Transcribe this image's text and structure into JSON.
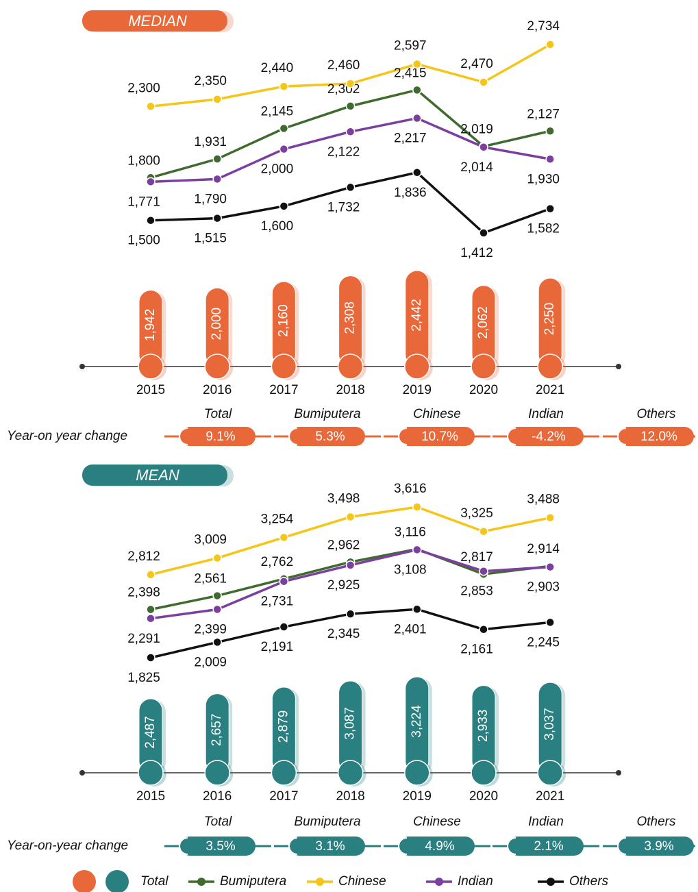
{
  "chart_data": [
    {
      "type": "combo",
      "title": "MEDIAN",
      "categories": [
        "2015",
        "2016",
        "2017",
        "2018",
        "2019",
        "2020",
        "2021"
      ],
      "series": [
        {
          "name": "Total",
          "type": "bar",
          "color": "#e8683a",
          "values": [
            1942,
            2000,
            2160,
            2308,
            2442,
            2062,
            2250
          ],
          "value_labels": [
            "1,942",
            "2,000",
            "2,160",
            "2,308",
            "2,442",
            "2,062",
            "2,250"
          ]
        },
        {
          "name": "Bumiputera",
          "type": "line",
          "color": "#3f6b2e",
          "values": [
            1800,
            1931,
            2145,
            2302,
            2415,
            2019,
            2127
          ],
          "value_labels": [
            "1,800",
            "1,931",
            "2,145",
            "2,302",
            "2,415",
            "2,019",
            "2,127"
          ]
        },
        {
          "name": "Chinese",
          "type": "line",
          "color": "#f5c518",
          "values": [
            2300,
            2350,
            2440,
            2460,
            2597,
            2470,
            2734
          ],
          "value_labels": [
            "2,300",
            "2,350",
            "2,440",
            "2,460",
            "2,597",
            "2,470",
            "2,734"
          ]
        },
        {
          "name": "Indian",
          "type": "line",
          "color": "#7b3fa0",
          "values": [
            1771,
            1790,
            2000,
            2122,
            2217,
            2014,
            1930
          ],
          "value_labels": [
            "1,771",
            "1,790",
            "2,000",
            "2,122",
            "2,217",
            "2,014",
            "1,930"
          ]
        },
        {
          "name": "Others",
          "type": "line",
          "color": "#111111",
          "values": [
            1500,
            1515,
            1600,
            1732,
            1836,
            1412,
            1582
          ],
          "value_labels": [
            "1,500",
            "1,515",
            "1,600",
            "1,732",
            "1,836",
            "1,412",
            "1,582"
          ]
        }
      ],
      "yoy": {
        "label": "Year-on year change",
        "values": [
          9.1,
          5.3,
          10.7,
          -4.2,
          12.0
        ],
        "value_labels": [
          "9.1%",
          "5.3%",
          "10.7%",
          "-4.2%",
          "12.0%"
        ]
      }
    },
    {
      "type": "combo",
      "title": "MEAN",
      "categories": [
        "2015",
        "2016",
        "2017",
        "2018",
        "2019",
        "2020",
        "2021"
      ],
      "series": [
        {
          "name": "Total",
          "type": "bar",
          "color": "#2a7f80",
          "values": [
            2487,
            2657,
            2879,
            3087,
            3224,
            2933,
            3037
          ],
          "value_labels": [
            "2,487",
            "2,657",
            "2,879",
            "3,087",
            "3,224",
            "2,933",
            "3,037"
          ]
        },
        {
          "name": "Bumiputera",
          "type": "line",
          "color": "#3f6b2e",
          "values": [
            2398,
            2561,
            2762,
            2962,
            3116,
            2817,
            2914
          ],
          "value_labels": [
            "2,398",
            "2,561",
            "2,762",
            "2,962",
            "3,116",
            "2,817",
            "2,914"
          ]
        },
        {
          "name": "Chinese",
          "type": "line",
          "color": "#f5c518",
          "values": [
            2812,
            3009,
            3254,
            3498,
            3616,
            3325,
            3488
          ],
          "value_labels": [
            "2,812",
            "3,009",
            "3,254",
            "3,498",
            "3,616",
            "3,325",
            "3,488"
          ]
        },
        {
          "name": "Indian",
          "type": "line",
          "color": "#7b3fa0",
          "values": [
            2291,
            2399,
            2731,
            2925,
            3108,
            2853,
            2903
          ],
          "value_labels": [
            "2,291",
            "2,399",
            "2,731",
            "2,925",
            "3,108",
            "2,853",
            "2,903"
          ]
        },
        {
          "name": "Others",
          "type": "line",
          "color": "#111111",
          "values": [
            1825,
            2009,
            2191,
            2345,
            2401,
            2161,
            2245
          ],
          "value_labels": [
            "1,825",
            "2,009",
            "2,191",
            "2,345",
            "2,401",
            "2,161",
            "2,245"
          ]
        }
      ],
      "yoy": {
        "label": "Year-on-year change",
        "values": [
          3.5,
          3.1,
          4.9,
          2.1,
          3.9
        ],
        "value_labels": [
          "3.5%",
          "3.1%",
          "4.9%",
          "2.1%",
          "3.9%"
        ]
      }
    }
  ]
}
